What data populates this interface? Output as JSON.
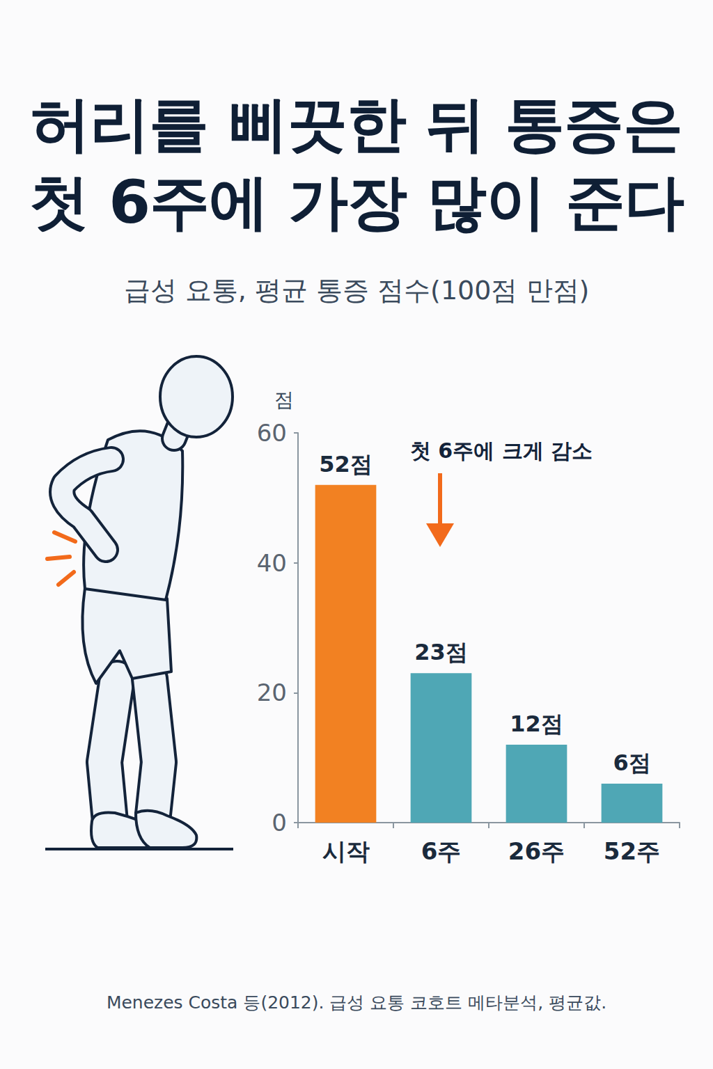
{
  "chart_data": {
    "type": "bar",
    "title": "허리를 삐끗한 뒤 통증은\n첫 6주에 가장 많이 준다",
    "subtitle": "급성 요통, 평균 통증 점수(100점 만점)",
    "y_label": "점",
    "categories": [
      "시작",
      "6주",
      "26주",
      "52주"
    ],
    "values": [
      52,
      23,
      12,
      6
    ],
    "value_labels": [
      "52점",
      "23점",
      "12점",
      "6점"
    ],
    "colors": [
      "#f28122",
      "#4fa7b5",
      "#4fa7b5",
      "#4fa7b5"
    ],
    "ylim": [
      0,
      60
    ],
    "yticks": [
      0,
      20,
      40,
      60
    ],
    "grid": false,
    "data_labels": true,
    "annotation": "첫 6주에 크게 감소",
    "source": "Menezes Costa 등(2012). 급성 요통 코호트 메타분석, 평균값."
  }
}
